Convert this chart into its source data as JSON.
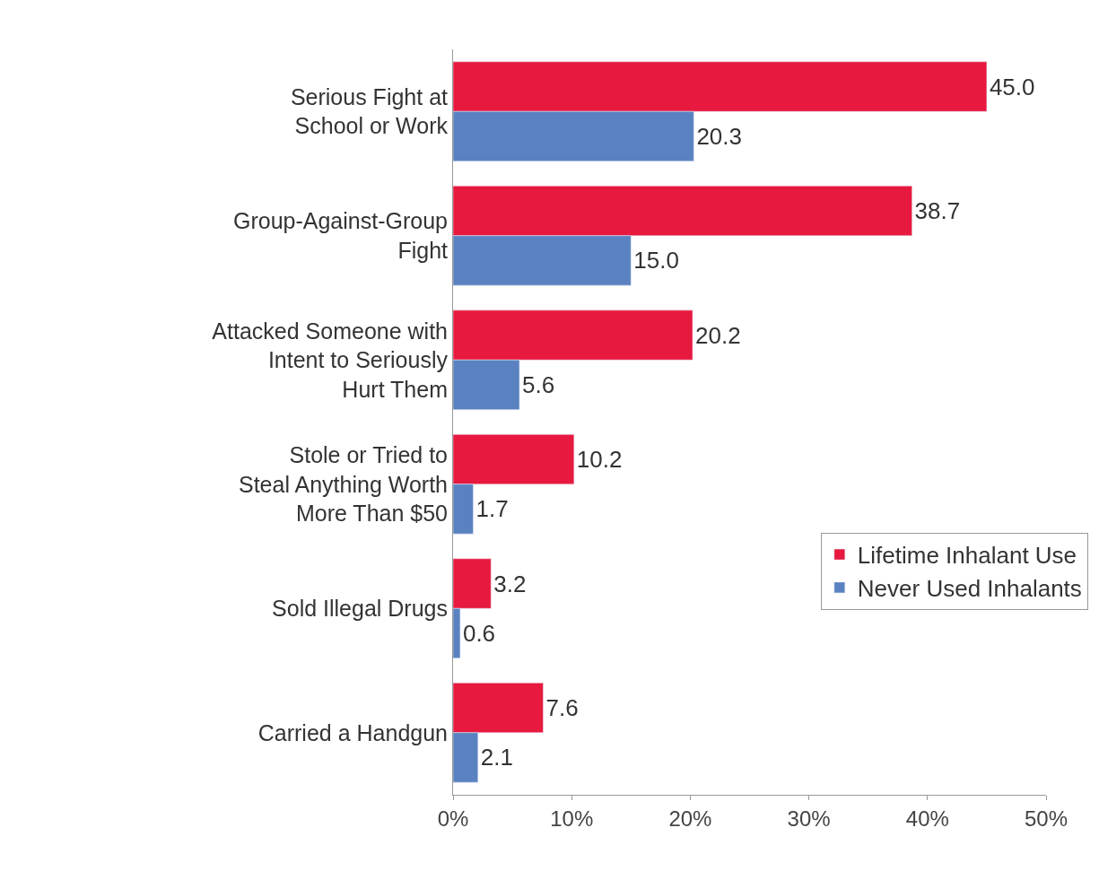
{
  "chart_data": {
    "type": "bar",
    "orientation": "horizontal",
    "categories": [
      "Serious Fight at School or Work",
      "Group-Against-Group Fight",
      "Attacked Someone with Intent to Seriously Hurt Them",
      "Stole or Tried to Steal Anything Worth More Than $50",
      "Sold Illegal Drugs",
      "Carried a Handgun"
    ],
    "series": [
      {
        "name": "Lifetime Inhalant Use",
        "color": "#e8193f",
        "values": [
          45.0,
          38.7,
          20.2,
          10.2,
          3.2,
          7.6
        ],
        "value_labels": [
          "45.0",
          "38.7",
          "20.2",
          "10.2",
          "3.2",
          "7.6"
        ]
      },
      {
        "name": "Never Used Inhalants",
        "color": "#5b82c0",
        "values": [
          20.3,
          15.0,
          5.6,
          1.7,
          0.6,
          2.1
        ],
        "value_labels": [
          "20.3",
          "15.0",
          "5.6",
          "1.7",
          "0.6",
          "2.1"
        ]
      }
    ],
    "xlim": [
      0,
      50
    ],
    "xticks": [
      {
        "value": 0,
        "label": "0%"
      },
      {
        "value": 10,
        "label": "10%"
      },
      {
        "value": 20,
        "label": "20%"
      },
      {
        "value": 30,
        "label": "30%"
      },
      {
        "value": 40,
        "label": "40%"
      },
      {
        "value": 50,
        "label": "50%"
      }
    ],
    "legend": "right"
  }
}
